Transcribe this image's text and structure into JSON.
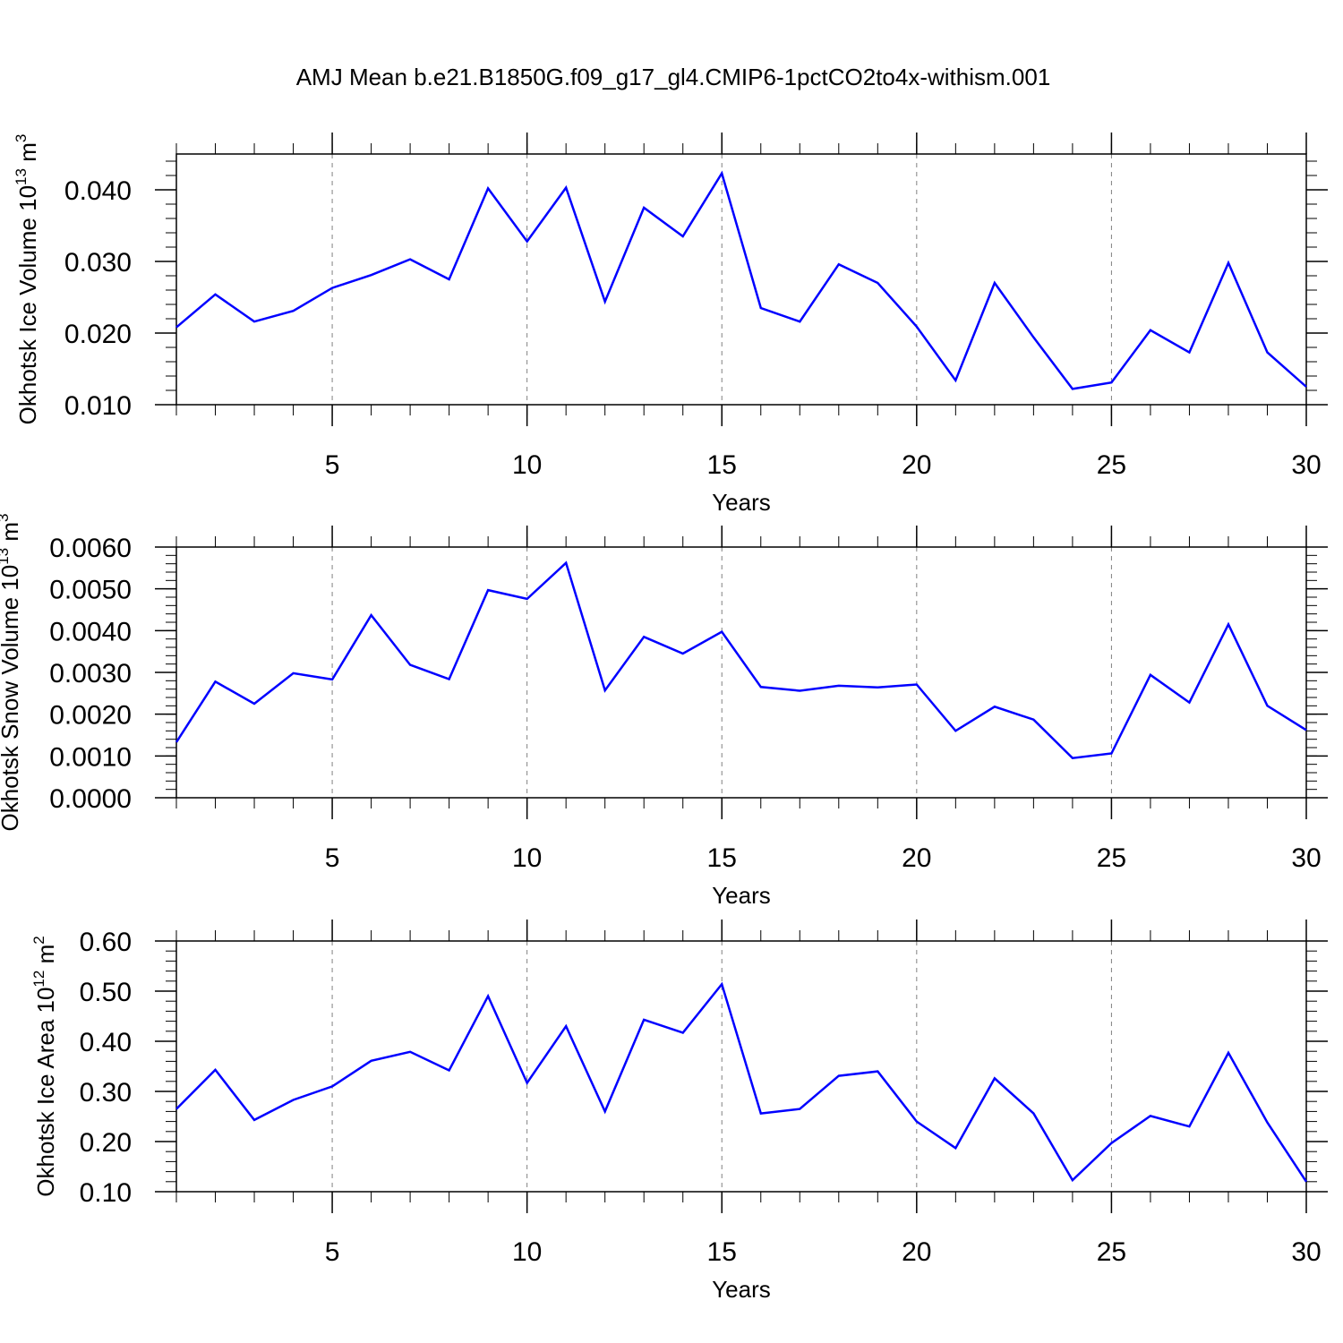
{
  "title": "AMJ Mean b.e21.B1850G.f09_g17_gl4.CMIP6-1pctCO2to4x-withism.001",
  "colors": {
    "series": "#0000ff",
    "axis": "#000000",
    "grid": "#808080"
  },
  "chart_data": [
    {
      "type": "line",
      "xlabel": "Years",
      "ylabel": {
        "text": "Okhotsk Ice Volume 10",
        "sup1": "13",
        "unit": " m",
        "sup2": "3"
      },
      "xlim": [
        1,
        30
      ],
      "ylim": [
        0.01,
        0.045
      ],
      "x_ticks": [
        "5",
        "10",
        "15",
        "20",
        "25",
        "30"
      ],
      "y_ticks": [
        "0.010",
        "0.020",
        "0.030",
        "0.040"
      ],
      "grid": "vertical dashed at x ticks",
      "series": [
        {
          "x": [
            1,
            2,
            3,
            4,
            5,
            6,
            7,
            8,
            9,
            10,
            11,
            12,
            13,
            14,
            15,
            16,
            17,
            18,
            19,
            20,
            21,
            22,
            23,
            24,
            25,
            26,
            27,
            28,
            29,
            30
          ],
          "values": [
            0.0208,
            0.0254,
            0.0216,
            0.0231,
            0.0263,
            0.0281,
            0.0303,
            0.0275,
            0.0402,
            0.0328,
            0.0403,
            0.0244,
            0.0375,
            0.0335,
            0.0423,
            0.0235,
            0.0216,
            0.0296,
            0.027,
            0.0209,
            0.0134,
            0.027,
            0.0194,
            0.0122,
            0.0131,
            0.0204,
            0.0173,
            0.0298,
            0.0173,
            0.0125
          ]
        }
      ]
    },
    {
      "type": "line",
      "xlabel": "Years",
      "ylabel": {
        "text": "Okhotsk Snow Volume 10",
        "sup1": "13",
        "unit": " m",
        "sup2": "3"
      },
      "xlim": [
        1,
        30
      ],
      "ylim": [
        0.0,
        0.006
      ],
      "x_ticks": [
        "5",
        "10",
        "15",
        "20",
        "25",
        "30"
      ],
      "y_ticks": [
        "0.0000",
        "0.0010",
        "0.0020",
        "0.0030",
        "0.0040",
        "0.0050",
        "0.0060"
      ],
      "grid": "vertical dashed at x ticks",
      "series": [
        {
          "x": [
            1,
            2,
            3,
            4,
            5,
            6,
            7,
            8,
            9,
            10,
            11,
            12,
            13,
            14,
            15,
            16,
            17,
            18,
            19,
            20,
            21,
            22,
            23,
            24,
            25,
            26,
            27,
            28,
            29,
            30
          ],
          "values": [
            0.00133,
            0.00278,
            0.00225,
            0.00298,
            0.00283,
            0.00437,
            0.00318,
            0.00284,
            0.00497,
            0.00476,
            0.00562,
            0.00257,
            0.00385,
            0.00345,
            0.00397,
            0.00265,
            0.00256,
            0.00268,
            0.00264,
            0.00271,
            0.0016,
            0.00218,
            0.00187,
            0.00095,
            0.00106,
            0.00294,
            0.00228,
            0.00415,
            0.0022,
            0.00162
          ]
        }
      ]
    },
    {
      "type": "line",
      "xlabel": "Years",
      "ylabel": {
        "text": "Okhotsk Ice Area 10",
        "sup1": "12",
        "unit": " m",
        "sup2": "2"
      },
      "xlim": [
        1,
        30
      ],
      "ylim": [
        0.1,
        0.6
      ],
      "x_ticks": [
        "5",
        "10",
        "15",
        "20",
        "25",
        "30"
      ],
      "y_ticks": [
        "0.10",
        "0.20",
        "0.30",
        "0.40",
        "0.50",
        "0.60"
      ],
      "grid": "vertical dashed at x ticks",
      "series": [
        {
          "x": [
            1,
            2,
            3,
            4,
            5,
            6,
            7,
            8,
            9,
            10,
            11,
            12,
            13,
            14,
            15,
            16,
            17,
            18,
            19,
            20,
            21,
            22,
            23,
            24,
            25,
            26,
            27,
            28,
            29,
            30
          ],
          "values": [
            0.265,
            0.343,
            0.243,
            0.283,
            0.31,
            0.361,
            0.379,
            0.342,
            0.49,
            0.317,
            0.43,
            0.26,
            0.443,
            0.417,
            0.514,
            0.256,
            0.265,
            0.331,
            0.34,
            0.24,
            0.187,
            0.326,
            0.256,
            0.123,
            0.197,
            0.251,
            0.23,
            0.377,
            0.238,
            0.12
          ]
        }
      ]
    }
  ]
}
